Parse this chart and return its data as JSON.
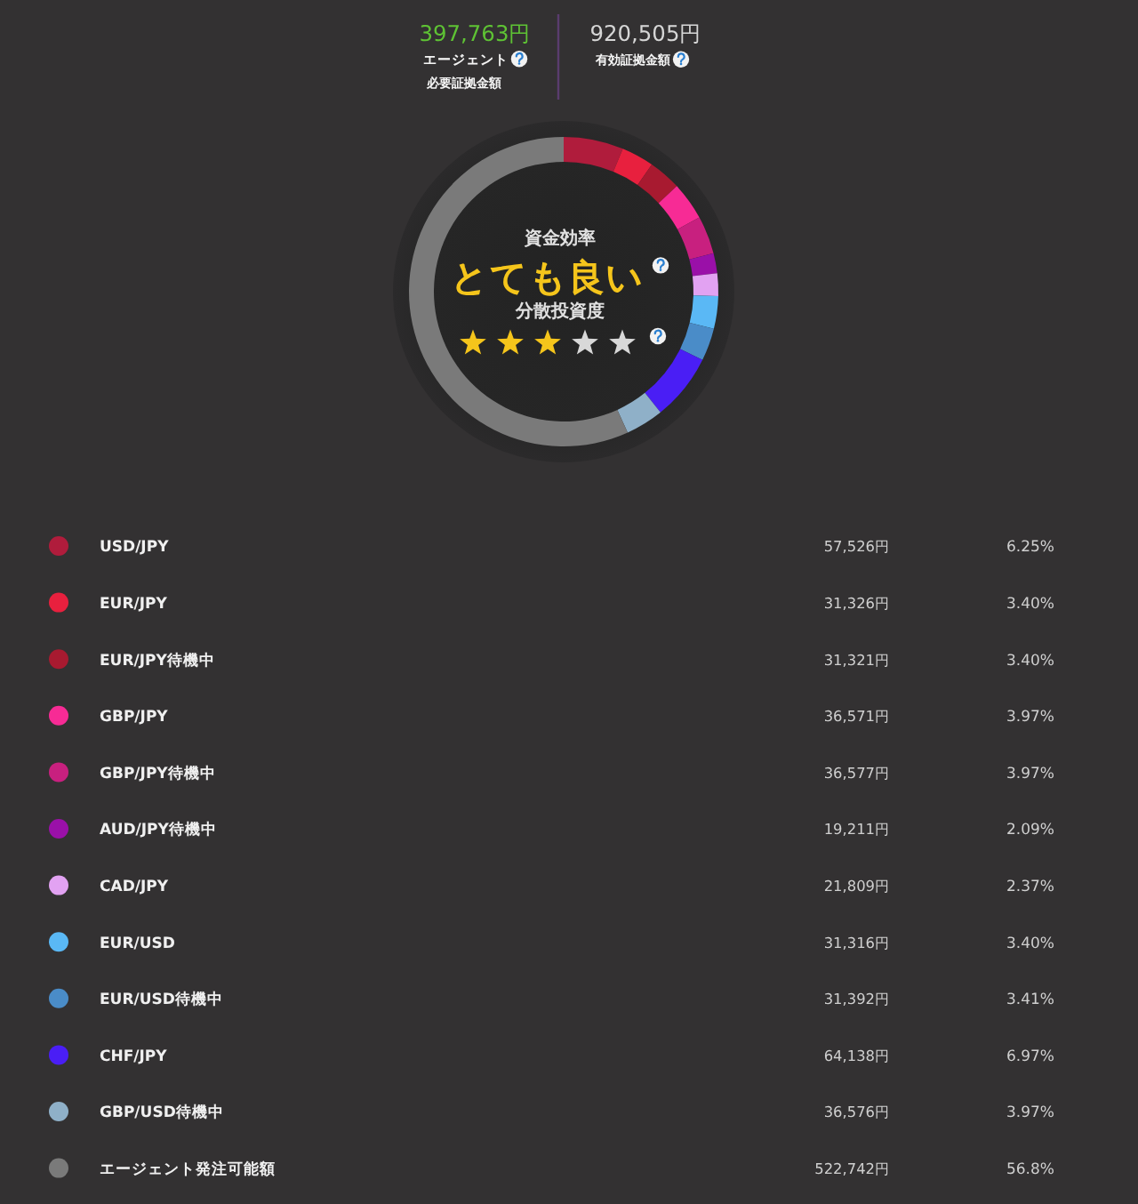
{
  "chart_data": {
    "type": "donut",
    "categories": [
      "USD/JPY",
      "EUR/JPY",
      "EUR/JPY待機中",
      "GBP/JPY",
      "GBP/JPY待機中",
      "AUD/JPY待機中",
      "CAD/JPY",
      "EUR/USD",
      "EUR/USD待機中",
      "CHF/JPY",
      "GBP/USD待機中",
      "エージェント発注可能額"
    ],
    "values": [
      57526,
      31326,
      31321,
      36571,
      36577,
      19211,
      21809,
      31316,
      31392,
      64138,
      36576,
      522742
    ],
    "colors": [
      "#b01c3c",
      "#e8203e",
      "#a81a30",
      "#f72b95",
      "#c8207f",
      "#9a10a8",
      "#e2a2f2",
      "#5ab8f5",
      "#4a8cc8",
      "#4a1ef5",
      "#8fb0c8",
      "#7a7a7a"
    ],
    "value_labels": [
      "57,526円",
      "31,326円",
      "31,321円",
      "36,571円",
      "36,577円",
      "19,211円",
      "21,809円",
      "31,316円",
      "31,392円",
      "64,138円",
      "36,576円",
      "522,742円"
    ],
    "legend": "bottom",
    "annotations": [
      "397,763円",
      "エージェント",
      "必要証拠金額",
      "920,505円",
      "有効証拠金額",
      "資金効率",
      "とても良い",
      "分散投資度",
      "6.25%",
      "3.40%",
      "3.40%",
      "3.97%",
      "3.97%",
      "2.09%",
      "2.37%",
      "3.40%",
      "3.41%",
      "6.97%",
      "3.97%",
      "56.8%"
    ]
  }
}
